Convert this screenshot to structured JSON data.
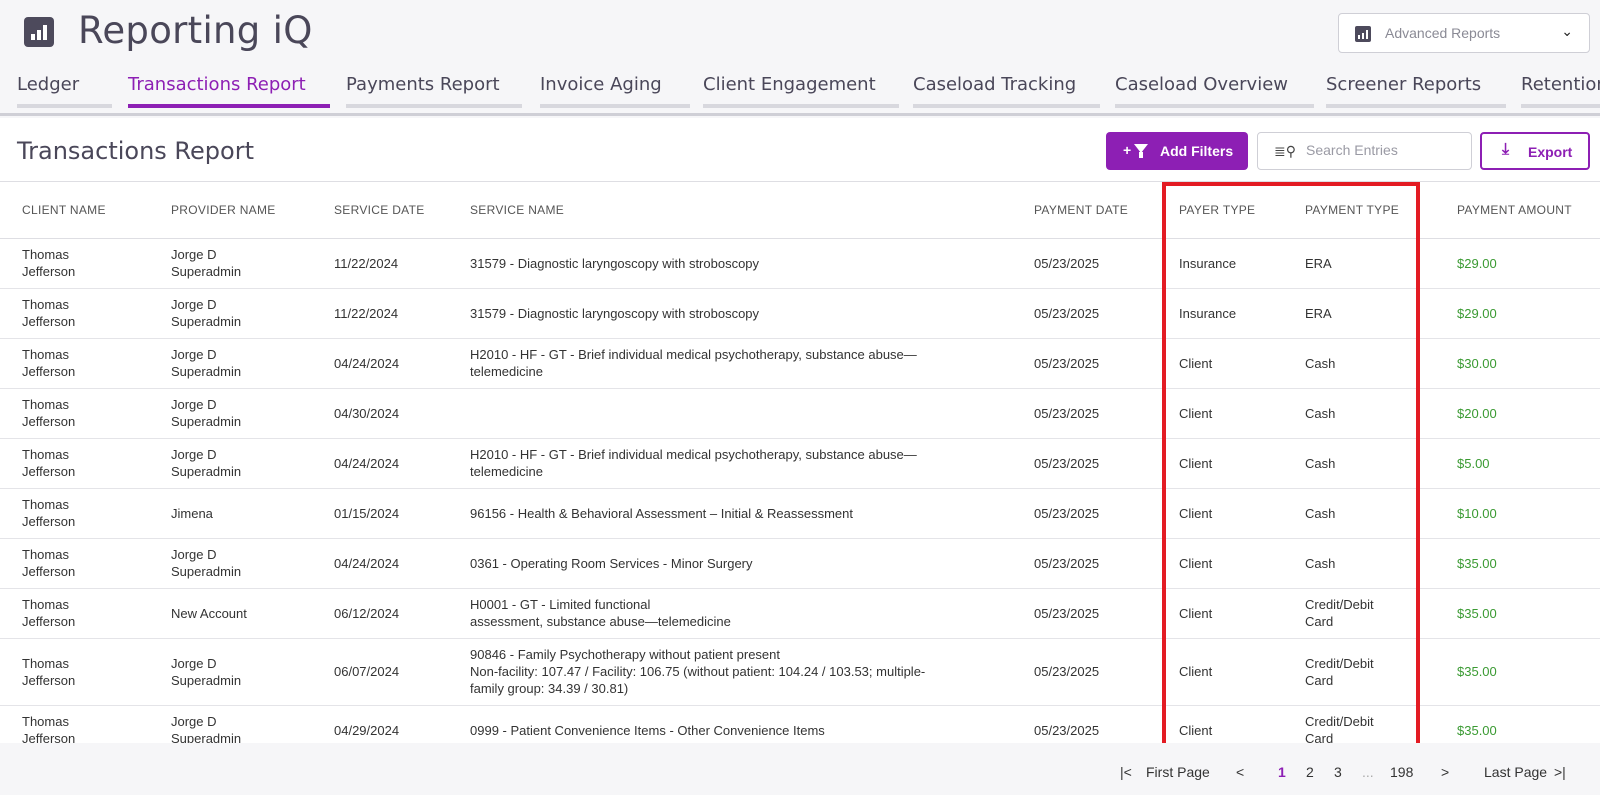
{
  "app": {
    "title": "Reporting iQ",
    "logo_icon": "bar-chart-icon"
  },
  "reports_select": {
    "value": "Advanced Reports"
  },
  "tabs": [
    {
      "label": "Ledger",
      "active": false
    },
    {
      "label": "Transactions Report",
      "active": true
    },
    {
      "label": "Payments Report",
      "active": false
    },
    {
      "label": "Invoice Aging",
      "active": false
    },
    {
      "label": "Client Engagement",
      "active": false
    },
    {
      "label": "Caseload Tracking",
      "active": false
    },
    {
      "label": "Caseload Overview",
      "active": false
    },
    {
      "label": "Screener Reports",
      "active": false
    },
    {
      "label": "Retention",
      "active": false
    }
  ],
  "page": {
    "title": "Transactions Report"
  },
  "toolbar": {
    "filters_plus": "+",
    "filters_label": "Add Filters",
    "search_placeholder": "Search Entries",
    "export_label": "Export"
  },
  "table": {
    "headers": [
      "CLIENT NAME",
      "PROVIDER NAME",
      "SERVICE DATE",
      "SERVICE NAME",
      "PAYMENT DATE",
      "PAYER TYPE",
      "PAYMENT TYPE",
      "PAYMENT AMOUNT"
    ],
    "rows": [
      {
        "client": "Thomas\nJefferson",
        "provider": "Jorge D\nSuperadmin",
        "service_date": "11/22/2024",
        "service_name": "31579 - Diagnostic laryngoscopy with stroboscopy",
        "payment_date": "05/23/2025",
        "payer_type": "Insurance",
        "payment_type": "ERA",
        "amount": "$29.00"
      },
      {
        "client": "Thomas\nJefferson",
        "provider": "Jorge D\nSuperadmin",
        "service_date": "11/22/2024",
        "service_name": "31579 - Diagnostic laryngoscopy with stroboscopy",
        "payment_date": "05/23/2025",
        "payer_type": "Insurance",
        "payment_type": "ERA",
        "amount": "$29.00"
      },
      {
        "client": "Thomas\nJefferson",
        "provider": "Jorge D\nSuperadmin",
        "service_date": "04/24/2024",
        "service_name": "H2010 - HF - GT - Brief individual medical psychotherapy, substance abuse—\ntelemedicine",
        "payment_date": "05/23/2025",
        "payer_type": "Client",
        "payment_type": "Cash",
        "amount": "$30.00"
      },
      {
        "client": "Thomas\nJefferson",
        "provider": "Jorge D\nSuperadmin",
        "service_date": "04/30/2024",
        "service_name": "",
        "payment_date": "05/23/2025",
        "payer_type": "Client",
        "payment_type": "Cash",
        "amount": "$20.00"
      },
      {
        "client": "Thomas\nJefferson",
        "provider": "Jorge D\nSuperadmin",
        "service_date": "04/24/2024",
        "service_name": "H2010 - HF - GT - Brief individual medical psychotherapy, substance abuse—\ntelemedicine",
        "payment_date": "05/23/2025",
        "payer_type": "Client",
        "payment_type": "Cash",
        "amount": "$5.00"
      },
      {
        "client": "Thomas\nJefferson",
        "provider": "Jimena",
        "service_date": "01/15/2024",
        "service_name": "96156 - Health & Behavioral Assessment – Initial & Reassessment",
        "payment_date": "05/23/2025",
        "payer_type": "Client",
        "payment_type": "Cash",
        "amount": "$10.00"
      },
      {
        "client": "Thomas\nJefferson",
        "provider": "Jorge D\nSuperadmin",
        "service_date": "04/24/2024",
        "service_name": "0361 - Operating Room Services - Minor Surgery",
        "payment_date": "05/23/2025",
        "payer_type": "Client",
        "payment_type": "Cash",
        "amount": "$35.00"
      },
      {
        "client": "Thomas\nJefferson",
        "provider": "New Account",
        "service_date": "06/12/2024",
        "service_name": "H0001 - GT - Limited functional\nassessment, substance abuse—telemedicine",
        "payment_date": "05/23/2025",
        "payer_type": "Client",
        "payment_type": "Credit/Debit\nCard",
        "amount": "$35.00"
      },
      {
        "client": "Thomas\nJefferson",
        "provider": "Jorge D\nSuperadmin",
        "service_date": "06/07/2024",
        "service_name": "90846 - Family Psychotherapy without patient present\nNon-facility: 107.47 / Facility: 106.75 (without patient: 104.24 / 103.53; multiple-\nfamily group: 34.39 / 30.81)",
        "payment_date": "05/23/2025",
        "payer_type": "Client",
        "payment_type": "Credit/Debit\nCard",
        "amount": "$35.00"
      },
      {
        "client": "Thomas\nJefferson",
        "provider": "Jorge D\nSuperadmin",
        "service_date": "04/29/2024",
        "service_name": "0999 - Patient Convenience Items - Other Convenience Items",
        "payment_date": "05/23/2025",
        "payer_type": "Client",
        "payment_type": "Credit/Debit\nCard",
        "amount": "$35.00"
      }
    ]
  },
  "pagination": {
    "first_label": "First Page",
    "last_label": "Last Page",
    "pages": [
      "1",
      "2",
      "3"
    ],
    "ellipsis": "...",
    "last_page_number": "198",
    "current": "1"
  },
  "colors": {
    "accent": "#8d1fb4",
    "amount": "#3a9a32",
    "highlight": "#e31b23"
  }
}
